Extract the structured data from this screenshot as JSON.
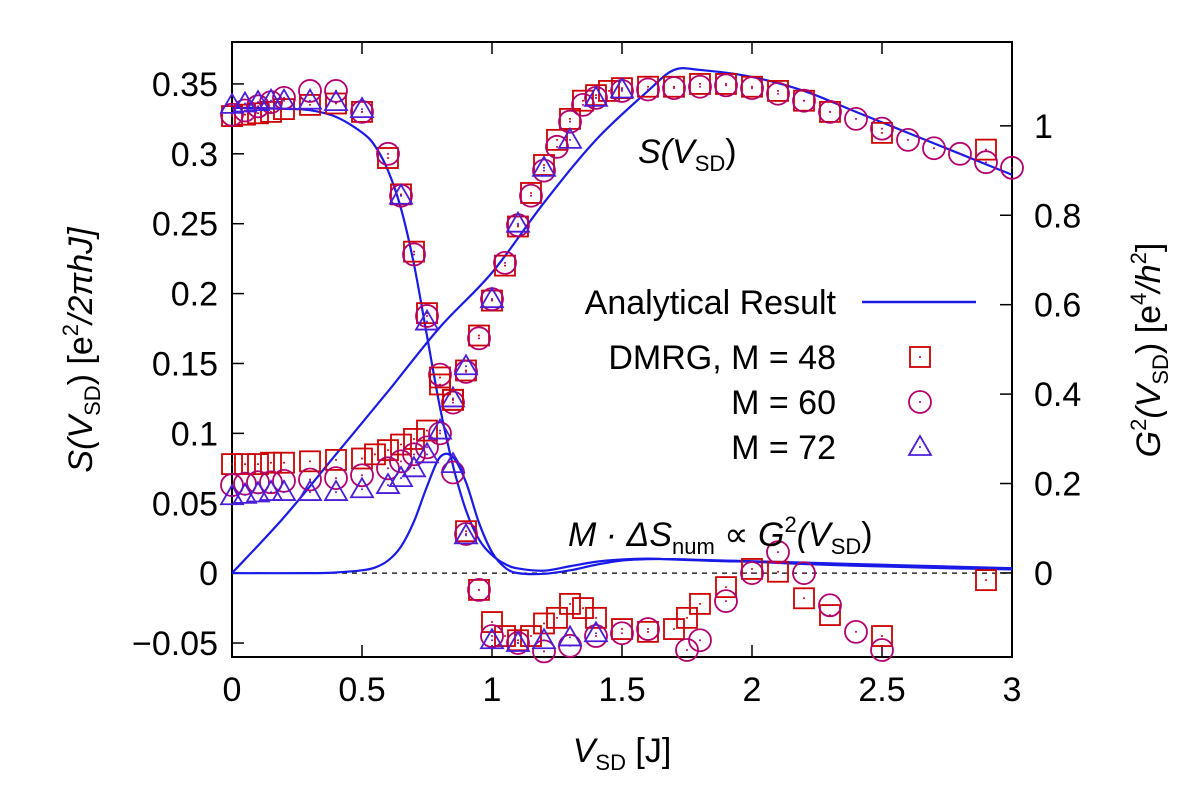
{
  "chart_data": {
    "type": "scatter",
    "xlabel_parts": {
      "var": "V",
      "sub": "SD",
      "unit": "[J]"
    },
    "ylabel_left_parts": {
      "pre": "S(V",
      "sub": "SD",
      "mid": ") [e",
      "sup": "2",
      "post": "/2πhJ]"
    },
    "ylabel_right_parts": {
      "pre": "G",
      "sup": "2",
      "mid": "(V",
      "sub": "SD",
      "mid2": ") [e",
      "sup2": "4",
      "mid3": "/h",
      "sup3": "2",
      "post": "]"
    },
    "xlim": [
      0,
      3
    ],
    "ylim_left": [
      -0.06,
      0.38
    ],
    "ylim_right": [
      -0.188,
      1.1875
    ],
    "x_ticks": [
      "0",
      "0.5",
      "1",
      "1.5",
      "2",
      "2.5",
      "3"
    ],
    "y_ticks_left": [
      "−0.05",
      "0",
      "0.05",
      "0.1",
      "0.15",
      "0.2",
      "0.25",
      "0.3",
      "0.35"
    ],
    "y_ticks_right": [
      "0",
      "0.2",
      "0.4",
      "0.6",
      "0.8",
      "1"
    ],
    "annotations": {
      "s_curve": {
        "pre": "S(V",
        "sub": "SD",
        "post": ")"
      },
      "delta": {
        "pre": "M · ΔS",
        "sub": "num",
        "mid": " ∝ G",
        "sup": "2",
        "mid2": "(V",
        "sub2": "SD",
        "post": ")"
      }
    },
    "legend": {
      "placement": "center-right",
      "entries": [
        {
          "label": "Analytical Result",
          "marker": "line",
          "color": "#1a1ae6"
        },
        {
          "label": "DMRG, M = 48",
          "marker": "square",
          "color": "#cc0000"
        },
        {
          "label": "M = 60",
          "marker": "circle",
          "color": "#b0006e"
        },
        {
          "label": "M = 72",
          "marker": "triangle",
          "color": "#4a1ed6"
        }
      ]
    },
    "zero_line": {
      "y": 0,
      "style": "dashed"
    },
    "series": [
      {
        "axis": "right",
        "marker": "line",
        "color": "#1a1ae6",
        "x": [
          0,
          0.1,
          0.2,
          0.3,
          0.4,
          0.5,
          0.55,
          0.6,
          0.65,
          0.7,
          0.75,
          0.8,
          0.85,
          0.9,
          0.95,
          1.0,
          1.05,
          1.1,
          1.2,
          1.3,
          1.4,
          1.5,
          1.6,
          1.7,
          1.8,
          1.9,
          2.0,
          2.2,
          2.4,
          2.6,
          2.8,
          3.0
        ],
        "y": [
          1.04,
          1.04,
          1.038,
          1.035,
          1.02,
          0.985,
          0.955,
          0.9,
          0.815,
          0.69,
          0.53,
          0.37,
          0.24,
          0.14,
          0.075,
          0.04,
          0.02,
          0.01,
          0.005,
          0.015,
          0.025,
          0.03,
          0.032,
          0.03,
          0.028,
          0.026,
          0.025,
          0.02,
          0.016,
          0.013,
          0.01,
          0.008
        ]
      },
      {
        "axis": "left",
        "marker": "line",
        "color": "#1a1ae6",
        "x": [
          0,
          0.3,
          0.4,
          0.5,
          0.55,
          0.6,
          0.65,
          0.7,
          0.75,
          0.8,
          0.85,
          0.9,
          0.95,
          1.0,
          1.05,
          1.1,
          1.2,
          1.3,
          1.4,
          1.5,
          1.6,
          1.7,
          1.8,
          1.9,
          2.0,
          2.2,
          2.4,
          2.6,
          2.8,
          3.0
        ],
        "y": [
          0,
          0,
          0.0005,
          0.002,
          0.004,
          0.009,
          0.019,
          0.037,
          0.062,
          0.083,
          0.083,
          0.065,
          0.036,
          0.015,
          0.004,
          0.0,
          -0.0005,
          0.002,
          0.006,
          0.009,
          0.01,
          0.01,
          0.0095,
          0.009,
          0.0085,
          0.0075,
          0.0065,
          0.0055,
          0.0045,
          0.0035
        ]
      },
      {
        "axis": "left",
        "marker": "line",
        "color": "#1a1ae6",
        "x": [
          0,
          0.2,
          0.4,
          0.6,
          0.8,
          1.0,
          1.2,
          1.4,
          1.6,
          1.7,
          1.8,
          2.0,
          2.2,
          2.4,
          2.6,
          2.8,
          3.0
        ],
        "y": [
          0,
          0.04,
          0.085,
          0.13,
          0.176,
          0.215,
          0.265,
          0.31,
          0.345,
          0.36,
          0.36,
          0.355,
          0.345,
          0.33,
          0.315,
          0.3,
          0.285
        ],
        "style": "smooth"
      },
      {
        "axis": "left",
        "marker": "square",
        "color": "#cc0000",
        "x": [
          0,
          0.05,
          0.1,
          0.15,
          0.2,
          0.3,
          0.4,
          0.5,
          0.6,
          0.65,
          0.7,
          0.75,
          0.8,
          0.85,
          0.9,
          0.95,
          1.0,
          1.05,
          1.1,
          1.15,
          1.2,
          1.25,
          1.3,
          1.35,
          1.4,
          1.45,
          1.5,
          1.6,
          1.7,
          1.8,
          1.9,
          2.0,
          2.1,
          2.2,
          2.3,
          2.5,
          2.9
        ],
        "y": [
          0.327,
          0.328,
          0.329,
          0.33,
          0.332,
          0.335,
          0.336,
          0.33,
          0.297,
          0.271,
          0.23,
          0.186,
          0.14,
          0.124,
          0.145,
          0.17,
          0.195,
          0.22,
          0.248,
          0.272,
          0.292,
          0.31,
          0.325,
          0.338,
          0.342,
          0.345,
          0.347,
          0.348,
          0.348,
          0.35,
          0.35,
          0.348,
          0.345,
          0.338,
          0.33,
          0.315,
          0.303
        ]
      },
      {
        "axis": "left",
        "marker": "circle",
        "color": "#b0006e",
        "x": [
          0,
          0.05,
          0.1,
          0.15,
          0.2,
          0.3,
          0.4,
          0.5,
          0.6,
          0.65,
          0.7,
          0.75,
          0.8,
          0.85,
          0.9,
          0.95,
          1.0,
          1.05,
          1.1,
          1.15,
          1.2,
          1.25,
          1.3,
          1.35,
          1.4,
          1.5,
          1.6,
          1.7,
          1.8,
          1.9,
          2.0,
          2.1,
          2.2,
          2.3,
          2.4,
          2.5,
          2.6,
          2.7,
          2.8,
          2.9,
          3.0
        ],
        "y": [
          0.328,
          0.331,
          0.334,
          0.337,
          0.34,
          0.345,
          0.345,
          0.33,
          0.3,
          0.27,
          0.228,
          0.184,
          0.142,
          0.122,
          0.144,
          0.168,
          0.196,
          0.222,
          0.249,
          0.27,
          0.288,
          0.305,
          0.323,
          0.335,
          0.34,
          0.345,
          0.346,
          0.347,
          0.348,
          0.349,
          0.347,
          0.343,
          0.338,
          0.33,
          0.325,
          0.318,
          0.31,
          0.304,
          0.3,
          0.294,
          0.29
        ]
      },
      {
        "axis": "left",
        "marker": "triangle",
        "color": "#4a1ed6",
        "x": [
          0,
          0.05,
          0.1,
          0.15,
          0.2,
          0.3,
          0.4,
          0.5,
          0.65,
          0.75,
          0.85,
          0.9,
          1.0,
          1.1,
          1.2,
          1.3,
          1.4,
          1.5
        ],
        "y": [
          0.335,
          0.336,
          0.337,
          0.338,
          0.338,
          0.338,
          0.337,
          0.332,
          0.27,
          0.18,
          0.125,
          0.148,
          0.196,
          0.25,
          0.29,
          0.31,
          0.34,
          0.346
        ]
      },
      {
        "axis": "left",
        "marker": "square",
        "color": "#cc0000",
        "x": [
          0,
          0.05,
          0.1,
          0.15,
          0.2,
          0.3,
          0.4,
          0.5,
          0.55,
          0.6,
          0.65,
          0.7,
          0.75,
          0.8,
          0.85,
          0.9,
          0.95,
          1.0,
          1.05,
          1.1,
          1.15,
          1.2,
          1.25,
          1.3,
          1.35,
          1.4,
          1.5,
          1.6,
          1.7,
          1.75,
          1.8,
          1.9,
          2.0,
          2.1,
          2.2,
          2.3,
          2.5,
          2.9
        ],
        "y": [
          0.078,
          0.078,
          0.078,
          0.079,
          0.079,
          0.08,
          0.081,
          0.082,
          0.085,
          0.088,
          0.092,
          0.096,
          0.102,
          0.135,
          0.124,
          0.03,
          -0.012,
          -0.035,
          -0.045,
          -0.048,
          -0.045,
          -0.036,
          -0.032,
          -0.022,
          -0.025,
          -0.032,
          -0.04,
          -0.042,
          -0.04,
          -0.032,
          -0.022,
          -0.01,
          0.003,
          0.001,
          -0.018,
          -0.03,
          -0.045,
          -0.005
        ]
      },
      {
        "axis": "left",
        "marker": "circle",
        "color": "#b0006e",
        "x": [
          0,
          0.05,
          0.1,
          0.15,
          0.2,
          0.3,
          0.4,
          0.5,
          0.6,
          0.65,
          0.7,
          0.75,
          0.8,
          0.85,
          0.9,
          0.95,
          1.0,
          1.1,
          1.2,
          1.3,
          1.4,
          1.5,
          1.6,
          1.75,
          1.8,
          1.9,
          2.0,
          2.1,
          2.2,
          2.3,
          2.4,
          2.5
        ],
        "y": [
          0.063,
          0.064,
          0.065,
          0.065,
          0.066,
          0.067,
          0.068,
          0.07,
          0.075,
          0.08,
          0.085,
          0.09,
          0.1,
          0.072,
          0.028,
          -0.012,
          -0.045,
          -0.05,
          -0.056,
          -0.052,
          -0.045,
          -0.043,
          -0.04,
          -0.055,
          -0.048,
          -0.02,
          0.0,
          0.015,
          0.0,
          -0.023,
          -0.042,
          -0.055
        ]
      },
      {
        "axis": "left",
        "marker": "triangle",
        "color": "#4a1ed6",
        "x": [
          0,
          0.05,
          0.1,
          0.15,
          0.2,
          0.3,
          0.4,
          0.5,
          0.6,
          0.65,
          0.7,
          0.75,
          0.8,
          0.85,
          0.9,
          1.0,
          1.1,
          1.2,
          1.3,
          1.4
        ],
        "y": [
          0.055,
          0.056,
          0.057,
          0.058,
          0.058,
          0.058,
          0.058,
          0.06,
          0.063,
          0.068,
          0.075,
          0.085,
          0.102,
          0.078,
          0.027,
          -0.048,
          -0.05,
          -0.048,
          -0.046,
          -0.043
        ]
      }
    ]
  }
}
